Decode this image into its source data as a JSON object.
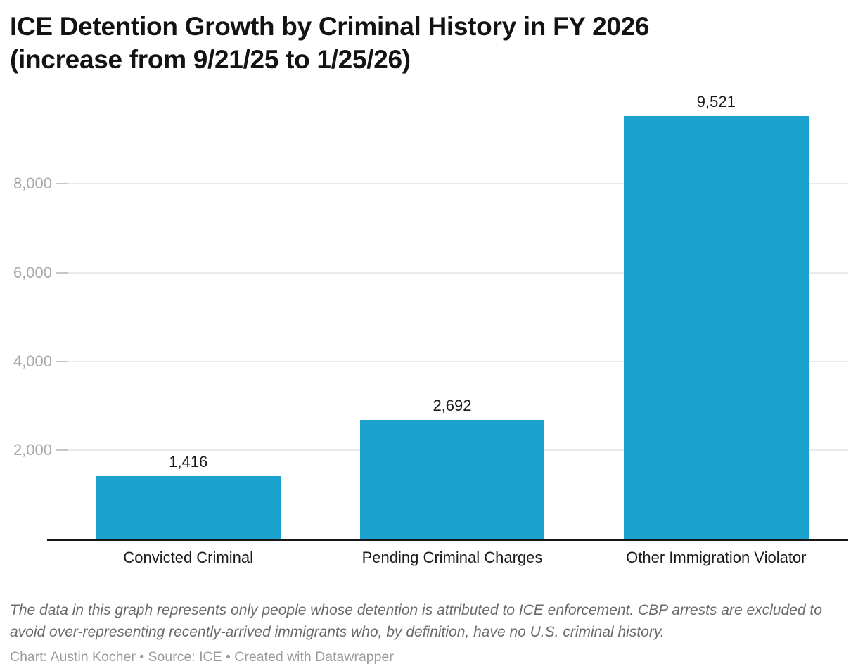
{
  "header": {
    "title_line1": "ICE Detention Growth by Criminal History in FY 2026",
    "title_line2": "(increase from 9/21/25 to 1/25/26)"
  },
  "chart_data": {
    "type": "bar",
    "title": "ICE Detention Growth by Criminal History in FY 2026 (increase from 9/21/25 to 1/25/26)",
    "categories": [
      "Convicted Criminal",
      "Pending Criminal Charges",
      "Other Immigration Violator"
    ],
    "values": [
      1416,
      2692,
      9521
    ],
    "value_labels": [
      "1,416",
      "2,692",
      "9,521"
    ],
    "xlabel": "",
    "ylabel": "",
    "ylim": [
      0,
      10000
    ],
    "yticks": [
      2000,
      4000,
      6000,
      8000
    ],
    "ytick_labels": [
      "2,000",
      "4,000",
      "6,000",
      "8,000"
    ],
    "grid": "horizontal-only",
    "legend": "none",
    "bar_color": "#1CA2CF",
    "axis_color": "#151515",
    "gridline_color": "#EAEAEA",
    "tick_color": "#C6C6C6",
    "ytick_text_color": "#A8A8A8"
  },
  "footer": {
    "note": "The data in this graph represents only people whose detention is attributed to ICE enforcement. CBP arrests are excluded to avoid over-representing recently-arrived immigrants who, by definition, have no U.S. criminal history.",
    "byline": "Chart: Austin Kocher • Source: ICE • Created with Datawrapper"
  }
}
